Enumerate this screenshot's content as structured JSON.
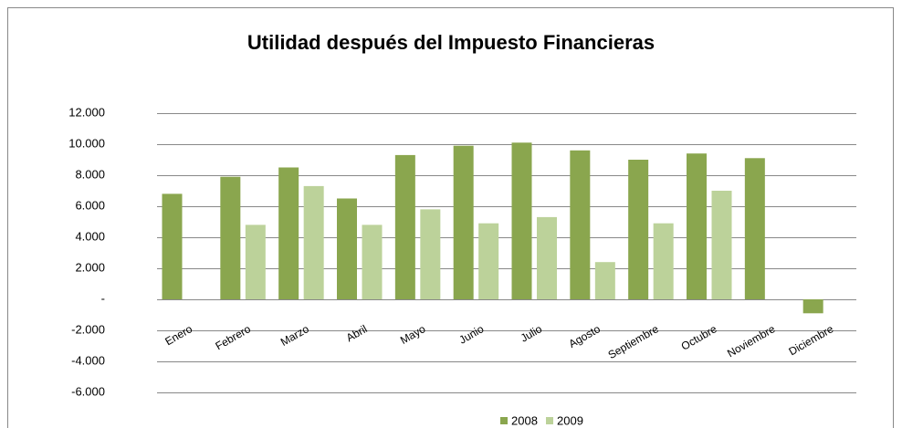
{
  "chart_data": {
    "type": "bar",
    "title": "Utilidad después del Impuesto  Financieras",
    "categories": [
      "Enero",
      "Febrero",
      "Marzo",
      "Abril",
      "Mayo",
      "Junio",
      "Julio",
      "Agosto",
      "Septiembre",
      "Octubre",
      "Noviembre",
      "Diciembre"
    ],
    "series": [
      {
        "name": "2008",
        "color": "#8aa64e",
        "values": [
          6800,
          7900,
          8500,
          6500,
          9300,
          9900,
          10100,
          9600,
          9000,
          9400,
          9100,
          -900
        ]
      },
      {
        "name": "2009",
        "color": "#bcd29a",
        "values": [
          null,
          4800,
          7300,
          4800,
          5800,
          4900,
          5300,
          2400,
          4900,
          7000,
          null,
          null
        ]
      }
    ],
    "ylim": [
      -6000,
      12000
    ],
    "yticks": [
      {
        "value": -6000,
        "label": "-6.000"
      },
      {
        "value": -4000,
        "label": "-4.000"
      },
      {
        "value": -2000,
        "label": "-2.000"
      },
      {
        "value": 0,
        "label": "-"
      },
      {
        "value": 2000,
        "label": "2.000"
      },
      {
        "value": 4000,
        "label": "4.000"
      },
      {
        "value": 6000,
        "label": "6.000"
      },
      {
        "value": 8000,
        "label": "8.000"
      },
      {
        "value": 10000,
        "label": "10.000"
      },
      {
        "value": 12000,
        "label": "12.000"
      }
    ],
    "grid": true,
    "legend": "bottom"
  }
}
